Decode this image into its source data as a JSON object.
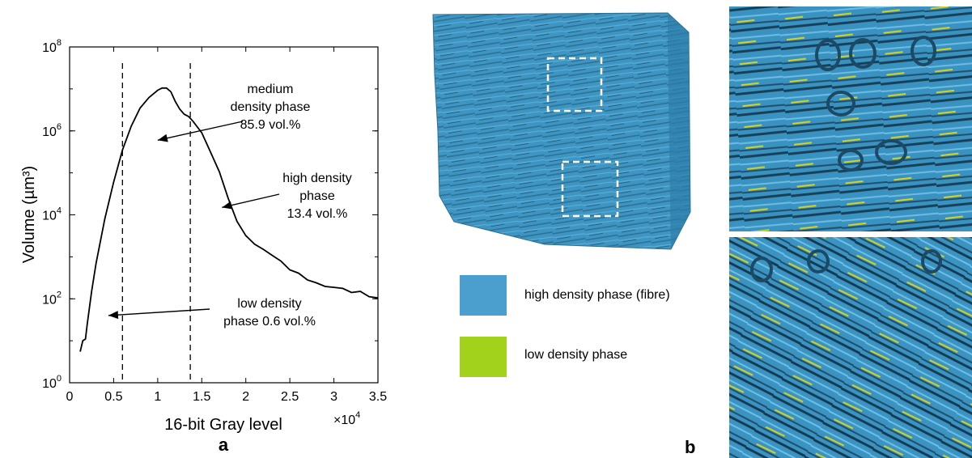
{
  "chart_data": {
    "type": "line",
    "panel_label": "a",
    "xlabel": "16-bit Gray level",
    "x_multiplier": "×10^4",
    "ylabel": "Volume (µm³)",
    "xlim": [
      0,
      35000
    ],
    "ylim": [
      1,
      100000000
    ],
    "yscale": "log",
    "x_ticks": [
      0,
      5000,
      10000,
      15000,
      20000,
      25000,
      30000,
      35000
    ],
    "x_tick_labels": [
      "0",
      "0.5",
      "1",
      "1.5",
      "2",
      "2.5",
      "3",
      "3.5"
    ],
    "y_ticks": [
      1,
      100,
      10000,
      1000000,
      100000000
    ],
    "y_tick_labels": [
      {
        "base": "10",
        "exp": "0"
      },
      {
        "base": "10",
        "exp": "2"
      },
      {
        "base": "10",
        "exp": "4"
      },
      {
        "base": "10",
        "exp": "6"
      },
      {
        "base": "10",
        "exp": "8"
      }
    ],
    "grid": false,
    "series": [
      {
        "x": [
          1200,
          1500,
          1800,
          2000,
          2500,
          3000,
          4000,
          5000,
          6000,
          7000,
          8000,
          9000,
          10000,
          10500,
          11000,
          11500,
          12000,
          12500,
          13000,
          13500,
          14000,
          15000,
          16000,
          17000,
          18000,
          19000,
          20000,
          21000,
          22000,
          23000,
          24000,
          25000,
          26000,
          27000,
          28000,
          29000,
          30000,
          31000,
          32000,
          33000,
          34000,
          35000
        ],
        "y": [
          5.5,
          10,
          11,
          25,
          150,
          700,
          8000,
          60000,
          350000,
          1300000,
          3500000,
          6200000,
          9300000,
          10500000,
          10500000,
          8500000,
          5000000,
          3300000,
          2500000,
          2200000,
          1700000,
          900000,
          310000,
          105000,
          25000,
          7000,
          3200,
          2000,
          1500,
          1100,
          750,
          520,
          380,
          300,
          230,
          200,
          190,
          170,
          150,
          140,
          120,
          100
        ]
      }
    ],
    "vlines": [
      6000,
      13700
    ],
    "annotations": [
      {
        "lines": [
          "medium",
          "density phase",
          "85.9 vol.%"
        ],
        "arrow_to": [
          10000,
          600000
        ]
      },
      {
        "lines": [
          "high density",
          "phase",
          "13.4 vol.%"
        ],
        "arrow_to": [
          17300,
          15000
        ]
      },
      {
        "lines": [
          "low density",
          "phase 0.6 vol.%"
        ],
        "arrow_to": [
          4400,
          40
        ]
      }
    ]
  },
  "figure_b": {
    "panel_label": "b",
    "legend": [
      {
        "label": "high density phase (fibre)",
        "color": "#4a9fce"
      },
      {
        "label": "low density phase",
        "color": "#a3d21c"
      }
    ]
  }
}
